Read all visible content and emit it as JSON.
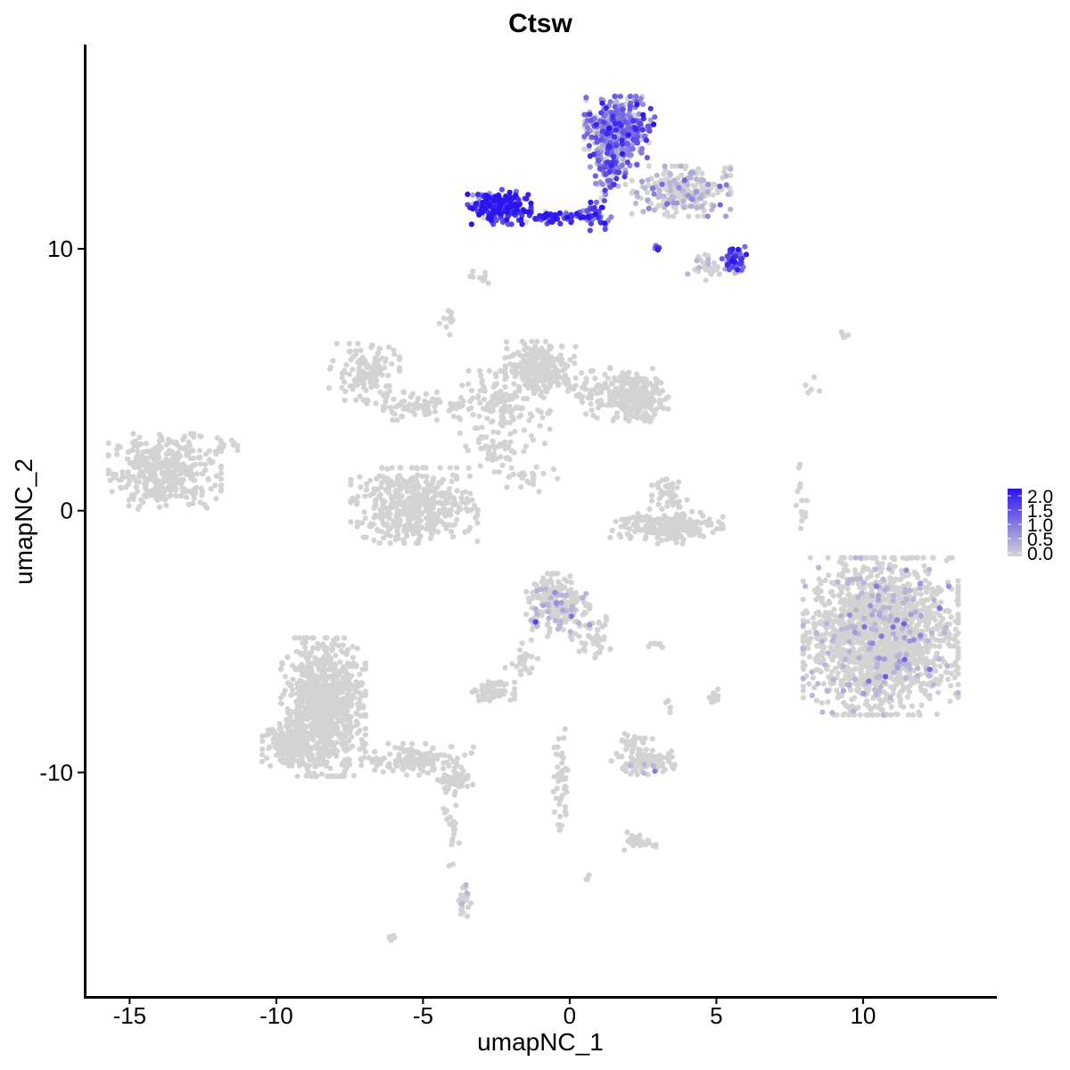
{
  "chart_data": {
    "type": "scatter",
    "title": "Ctsw",
    "xlabel": "umapNC_1",
    "ylabel": "umapNC_2",
    "xlim": [
      -16.5,
      14.5
    ],
    "ylim": [
      -18.5,
      17.8
    ],
    "x_ticks": [
      -15,
      -10,
      -5,
      0,
      5,
      10
    ],
    "x_tick_labels": [
      "-15",
      "-10",
      "-5",
      "0",
      "5",
      "10"
    ],
    "y_ticks": [
      10,
      0,
      -10
    ],
    "y_tick_labels": [
      "10",
      "0",
      "-10"
    ],
    "grid": false,
    "legend": {
      "placement": "right",
      "type": "color-gradient",
      "labels": [
        "2.0",
        "1.5",
        "1.0",
        "0.5",
        "0.0"
      ],
      "values": [
        2.0,
        1.5,
        1.0,
        0.5,
        0.0
      ],
      "low_color": "#d3d3d3",
      "high_color": "#2a14f0"
    },
    "colors": {
      "low": "#d3d3d3",
      "high": "#2a14f0"
    },
    "clusters": [
      {
        "cx": -13.8,
        "cy": 1.5,
        "rx": 1.6,
        "ry": 1.2,
        "n": 380,
        "expr": 0
      },
      {
        "cx": -11.8,
        "cy": 2.5,
        "rx": 0.4,
        "ry": 0.3,
        "n": 12,
        "expr": 0
      },
      {
        "cx": -7.0,
        "cy": 5.3,
        "rx": 1.0,
        "ry": 0.9,
        "n": 130,
        "expr": 0
      },
      {
        "cx": -5.0,
        "cy": 4.0,
        "rx": 1.6,
        "ry": 0.45,
        "n": 90,
        "expr": 0
      },
      {
        "cx": -4.2,
        "cy": 7.2,
        "rx": 0.25,
        "ry": 0.4,
        "n": 12,
        "expr": 0
      },
      {
        "cx": -2.3,
        "cy": 3.9,
        "rx": 1.4,
        "ry": 1.2,
        "n": 150,
        "expr": 0
      },
      {
        "cx": -1.0,
        "cy": 5.5,
        "rx": 1.0,
        "ry": 0.8,
        "n": 260,
        "expr": 0
      },
      {
        "cx": 1.5,
        "cy": 4.5,
        "rx": 1.3,
        "ry": 0.8,
        "n": 150,
        "expr": 0
      },
      {
        "cx": 2.4,
        "cy": 4.2,
        "rx": 0.8,
        "ry": 0.7,
        "n": 170,
        "expr": 0
      },
      {
        "cx": -2.5,
        "cy": 2.2,
        "rx": 0.8,
        "ry": 0.6,
        "n": 35,
        "expr": 0
      },
      {
        "cx": -1.5,
        "cy": 1.2,
        "rx": 0.9,
        "ry": 0.5,
        "n": 25,
        "expr": 0
      },
      {
        "cx": -5.3,
        "cy": 0.2,
        "rx": 1.8,
        "ry": 1.2,
        "n": 480,
        "expr": 0
      },
      {
        "cx": 3.4,
        "cy": 0.8,
        "rx": 0.5,
        "ry": 0.6,
        "n": 40,
        "expr": 0
      },
      {
        "cx": 3.3,
        "cy": -0.6,
        "rx": 1.6,
        "ry": 0.55,
        "n": 200,
        "expr": 0
      },
      {
        "cx": -3.0,
        "cy": 8.9,
        "rx": 0.35,
        "ry": 0.2,
        "n": 12,
        "expr": 0
      },
      {
        "cx": 7.9,
        "cy": 0.2,
        "rx": 0.15,
        "ry": 1.3,
        "n": 15,
        "expr": 0
      },
      {
        "cx": 8.2,
        "cy": 4.5,
        "rx": 0.3,
        "ry": 0.5,
        "n": 5,
        "expr": 0
      },
      {
        "cx": 9.5,
        "cy": 6.7,
        "rx": 0.2,
        "ry": 0.1,
        "n": 5,
        "expr": 0
      },
      {
        "cx": 10.6,
        "cy": -4.8,
        "rx": 2.2,
        "ry": 2.5,
        "n": 1700,
        "expr": 0.03
      },
      {
        "cx": -0.4,
        "cy": -3.6,
        "rx": 0.9,
        "ry": 1.0,
        "n": 230,
        "expr": 0.06
      },
      {
        "cx": 0.8,
        "cy": -4.8,
        "rx": 0.6,
        "ry": 0.7,
        "n": 40,
        "expr": 0
      },
      {
        "cx": -1.6,
        "cy": -5.5,
        "rx": 0.5,
        "ry": 0.8,
        "n": 25,
        "expr": 0
      },
      {
        "cx": 3.0,
        "cy": -5.1,
        "rx": 0.4,
        "ry": 0.1,
        "n": 8,
        "expr": 0
      },
      {
        "cx": -2.6,
        "cy": -6.9,
        "rx": 0.6,
        "ry": 0.3,
        "n": 60,
        "expr": 0
      },
      {
        "cx": 2.5,
        "cy": -9.6,
        "rx": 0.9,
        "ry": 0.4,
        "n": 110,
        "expr": 0.01
      },
      {
        "cx": 2.1,
        "cy": -8.8,
        "rx": 0.6,
        "ry": 0.3,
        "n": 25,
        "expr": 0
      },
      {
        "cx": -0.3,
        "cy": -10.5,
        "rx": 0.25,
        "ry": 1.8,
        "n": 45,
        "expr": 0
      },
      {
        "cx": 2.4,
        "cy": -12.6,
        "rx": 0.45,
        "ry": 0.3,
        "n": 30,
        "expr": 0
      },
      {
        "cx": 5.0,
        "cy": -7.3,
        "rx": 0.2,
        "ry": 0.4,
        "n": 10,
        "expr": 0
      },
      {
        "cx": 3.4,
        "cy": -7.5,
        "rx": 0.1,
        "ry": 0.2,
        "n": 4,
        "expr": 0
      },
      {
        "cx": -8.4,
        "cy": -7.5,
        "rx": 1.2,
        "ry": 2.2,
        "n": 850,
        "expr": 0
      },
      {
        "cx": -9.4,
        "cy": -8.9,
        "rx": 0.9,
        "ry": 0.7,
        "n": 200,
        "expr": 0
      },
      {
        "cx": -5.2,
        "cy": -9.5,
        "rx": 1.6,
        "ry": 0.5,
        "n": 140,
        "expr": 0
      },
      {
        "cx": -3.9,
        "cy": -10.3,
        "rx": 0.5,
        "ry": 0.3,
        "n": 50,
        "expr": 0
      },
      {
        "cx": -4.0,
        "cy": -12.0,
        "rx": 0.25,
        "ry": 1.3,
        "n": 25,
        "expr": 0
      },
      {
        "cx": -3.6,
        "cy": -14.8,
        "rx": 0.2,
        "ry": 0.9,
        "n": 25,
        "expr": 0.05
      },
      {
        "cx": -6.0,
        "cy": -16.3,
        "rx": 0.2,
        "ry": 0.15,
        "n": 6,
        "expr": 0
      },
      {
        "cx": 0.6,
        "cy": -14.0,
        "rx": 0.1,
        "ry": 0.1,
        "n": 3,
        "expr": 0
      },
      {
        "cx": 1.7,
        "cy": 14.5,
        "rx": 1.0,
        "ry": 1.1,
        "n": 420,
        "expr": 0.45
      },
      {
        "cx": 1.3,
        "cy": 12.9,
        "rx": 0.5,
        "ry": 0.8,
        "n": 70,
        "expr": 0.5
      },
      {
        "cx": 3.8,
        "cy": 12.2,
        "rx": 1.4,
        "ry": 0.8,
        "n": 250,
        "expr": 0.1
      },
      {
        "cx": -2.4,
        "cy": 11.6,
        "rx": 0.9,
        "ry": 0.55,
        "n": 190,
        "expr": 0.85
      },
      {
        "cx": -0.6,
        "cy": 11.2,
        "rx": 0.9,
        "ry": 0.2,
        "n": 70,
        "expr": 0.8
      },
      {
        "cx": 0.9,
        "cy": 11.3,
        "rx": 0.5,
        "ry": 0.5,
        "n": 40,
        "expr": 0.75
      },
      {
        "cx": 5.6,
        "cy": 9.6,
        "rx": 0.35,
        "ry": 0.4,
        "n": 55,
        "expr": 0.6
      },
      {
        "cx": 4.8,
        "cy": 9.4,
        "rx": 0.8,
        "ry": 0.5,
        "n": 40,
        "expr": 0.05
      },
      {
        "cx": 3.0,
        "cy": 10.0,
        "rx": 0.15,
        "ry": 0.1,
        "n": 6,
        "expr": 0.7
      }
    ]
  }
}
